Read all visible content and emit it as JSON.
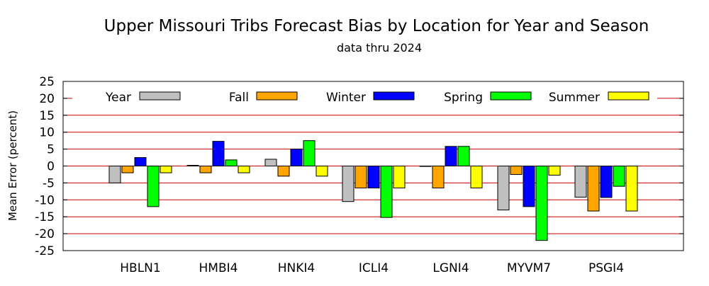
{
  "chart_data": {
    "type": "bar",
    "title": "Upper Missouri Tribs Forecast Bias by Location for Year and Season",
    "subtitle": "data thru 2024",
    "ylabel": "Mean Error (percent)",
    "xlabel": "",
    "ylim": [
      -25,
      25
    ],
    "yticks": [
      25,
      20,
      15,
      10,
      5,
      0,
      -5,
      -10,
      -15,
      -20,
      -25
    ],
    "grid": "horizontal",
    "legend_placement": "top",
    "categories": [
      "HBLN1",
      "HMBI4",
      "HNKI4",
      "ICLI4",
      "LGNI4",
      "MYVM7",
      "PSGI4"
    ],
    "series": [
      {
        "name": "Year",
        "color": "#c0c0c0",
        "values": [
          -5.0,
          0.2,
          2.0,
          -10.5,
          0.0,
          -13.0,
          -9.2
        ]
      },
      {
        "name": "Fall",
        "color": "#ffa500",
        "values": [
          -2.0,
          -2.0,
          -3.0,
          -6.5,
          -6.5,
          -2.5,
          -13.3
        ]
      },
      {
        "name": "Winter",
        "color": "#0000ff",
        "values": [
          2.5,
          7.3,
          5.0,
          -6.5,
          5.8,
          -12.0,
          -9.3
        ]
      },
      {
        "name": "Spring",
        "color": "#00ff00",
        "values": [
          -12.0,
          1.8,
          7.5,
          -15.2,
          5.8,
          -22.0,
          -6.0
        ]
      },
      {
        "name": "Summer",
        "color": "#ffff00",
        "values": [
          -2.0,
          -2.0,
          -3.0,
          -6.5,
          -6.5,
          -2.7,
          -13.3
        ]
      }
    ],
    "colors": {
      "grid": "#cc0000",
      "bar_outline": "#000000"
    }
  }
}
